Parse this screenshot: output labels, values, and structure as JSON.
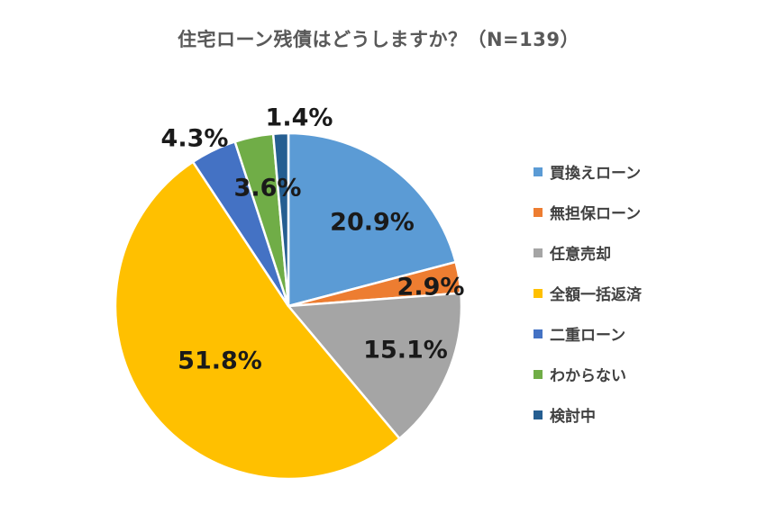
{
  "chart_data": {
    "type": "pie",
    "title": "住宅ローン残債はどうしますか？（N=139）",
    "categories": [
      "買換えローン",
      "無担保ローン",
      "任意売却",
      "全額一括返済",
      "二重ローン",
      "わからない",
      "検討中"
    ],
    "values": [
      20.9,
      2.9,
      15.1,
      51.8,
      4.3,
      3.6,
      1.4
    ],
    "labels": [
      "20.9%",
      "2.9%",
      "15.1%",
      "51.8%",
      "4.3%",
      "3.6%",
      "1.4%"
    ],
    "colors": [
      "#5b9bd5",
      "#ed7d31",
      "#a5a5a5",
      "#ffc000",
      "#4472c4",
      "#70ad47",
      "#255e91"
    ],
    "legend_position": "right"
  }
}
